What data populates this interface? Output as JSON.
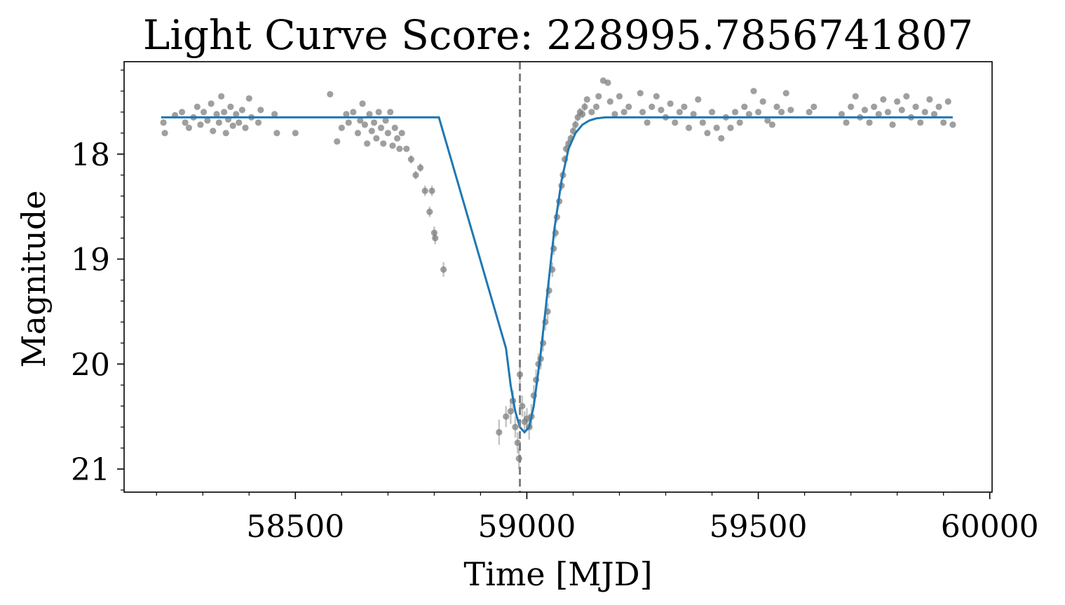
{
  "chart_data": {
    "type": "scatter",
    "title": "Light Curve Score: 228995.7856741807",
    "xlabel": "Time [MJD]",
    "ylabel": "Magnitude",
    "xlim": [
      58130,
      60005
    ],
    "ylim": [
      21.22,
      17.12
    ],
    "y_inverted": true,
    "x_ticks": [
      58500,
      59000,
      59500,
      60000
    ],
    "x_tick_labels": [
      "58500",
      "59000",
      "59500",
      "60000"
    ],
    "y_ticks": [
      18,
      19,
      20,
      21
    ],
    "y_tick_labels": [
      "18",
      "19",
      "20",
      "21"
    ],
    "x_minor_step": 100,
    "y_minor_step": 0.2,
    "grid": false,
    "legend": "none",
    "colors": {
      "points": "#7f7f7f",
      "model": "#1f77b4",
      "reference_line": "#7f7f7f"
    },
    "reference_line_x": 58985,
    "model": {
      "style": "solid",
      "x": [
        58210,
        58810,
        58955,
        58965,
        58975,
        58985,
        58995,
        59005,
        59015,
        59030,
        59045,
        59060,
        59075,
        59090,
        59105,
        59120,
        59135,
        59150,
        59170,
        59200,
        59300,
        59500,
        59700,
        59920
      ],
      "y": [
        17.65,
        17.65,
        19.85,
        20.2,
        20.45,
        20.6,
        20.65,
        20.6,
        20.4,
        19.9,
        19.3,
        18.7,
        18.25,
        17.95,
        17.8,
        17.72,
        17.68,
        17.66,
        17.65,
        17.65,
        17.65,
        17.65,
        17.65,
        17.65
      ]
    },
    "points": [
      [
        58215,
        17.7,
        0.03
      ],
      [
        58218,
        17.8,
        0.03
      ],
      [
        58240,
        17.63,
        0.03
      ],
      [
        58255,
        17.6,
        0.03
      ],
      [
        58262,
        17.7,
        0.03
      ],
      [
        58270,
        17.75,
        0.03
      ],
      [
        58280,
        17.65,
        0.03
      ],
      [
        58288,
        17.55,
        0.03
      ],
      [
        58295,
        17.72,
        0.03
      ],
      [
        58302,
        17.6,
        0.03
      ],
      [
        58310,
        17.68,
        0.03
      ],
      [
        58318,
        17.52,
        0.03
      ],
      [
        58322,
        17.78,
        0.03
      ],
      [
        58330,
        17.62,
        0.03
      ],
      [
        58335,
        17.7,
        0.03
      ],
      [
        58340,
        17.45,
        0.03
      ],
      [
        58346,
        17.6,
        0.03
      ],
      [
        58350,
        17.8,
        0.03
      ],
      [
        58355,
        17.67,
        0.03
      ],
      [
        58360,
        17.55,
        0.03
      ],
      [
        58365,
        17.73,
        0.03
      ],
      [
        58372,
        17.62,
        0.03
      ],
      [
        58378,
        17.7,
        0.03
      ],
      [
        58385,
        17.58,
        0.03
      ],
      [
        58392,
        17.75,
        0.03
      ],
      [
        58400,
        17.47,
        0.03
      ],
      [
        58405,
        17.65,
        0.03
      ],
      [
        58420,
        17.7,
        0.03
      ],
      [
        58425,
        17.58,
        0.03
      ],
      [
        58455,
        17.62,
        0.03
      ],
      [
        58460,
        17.8,
        0.03
      ],
      [
        58500,
        17.8,
        0.03
      ],
      [
        58575,
        17.43,
        0.03
      ],
      [
        58590,
        17.88,
        0.03
      ],
      [
        58600,
        17.75,
        0.03
      ],
      [
        58610,
        17.62,
        0.03
      ],
      [
        58615,
        17.7,
        0.03
      ],
      [
        58625,
        17.6,
        0.03
      ],
      [
        58635,
        17.8,
        0.03
      ],
      [
        58640,
        17.68,
        0.03
      ],
      [
        58645,
        17.52,
        0.03
      ],
      [
        58650,
        17.72,
        0.03
      ],
      [
        58655,
        17.9,
        0.03
      ],
      [
        58660,
        17.62,
        0.03
      ],
      [
        58665,
        17.78,
        0.03
      ],
      [
        58670,
        17.7,
        0.03
      ],
      [
        58675,
        17.85,
        0.03
      ],
      [
        58680,
        17.6,
        0.03
      ],
      [
        58685,
        17.75,
        0.03
      ],
      [
        58690,
        17.9,
        0.03
      ],
      [
        58695,
        17.68,
        0.03
      ],
      [
        58700,
        17.8,
        0.03
      ],
      [
        58705,
        17.6,
        0.03
      ],
      [
        58710,
        17.92,
        0.03
      ],
      [
        58715,
        17.75,
        0.03
      ],
      [
        58720,
        17.85,
        0.03
      ],
      [
        58725,
        17.95,
        0.03
      ],
      [
        58730,
        17.8,
        0.03
      ],
      [
        58740,
        17.95,
        0.03
      ],
      [
        58750,
        18.05,
        0.04
      ],
      [
        58760,
        18.2,
        0.04
      ],
      [
        58770,
        18.13,
        0.04
      ],
      [
        58780,
        18.35,
        0.05
      ],
      [
        58795,
        18.35,
        0.05
      ],
      [
        58790,
        18.55,
        0.05
      ],
      [
        58800,
        18.75,
        0.06
      ],
      [
        58802,
        18.8,
        0.06
      ],
      [
        58820,
        19.1,
        0.07
      ],
      [
        58940,
        20.65,
        0.12
      ],
      [
        58955,
        20.5,
        0.1
      ],
      [
        58965,
        20.45,
        0.12
      ],
      [
        58970,
        20.35,
        0.1
      ],
      [
        58975,
        20.6,
        0.1
      ],
      [
        58980,
        20.75,
        0.1
      ],
      [
        58983,
        20.9,
        0.1
      ],
      [
        58985,
        20.1,
        0.12
      ],
      [
        58990,
        20.4,
        0.1
      ],
      [
        58995,
        20.55,
        0.1
      ],
      [
        59000,
        20.52,
        0.1
      ],
      [
        59005,
        20.6,
        0.12
      ],
      [
        59010,
        20.5,
        0.12
      ],
      [
        59015,
        20.3,
        0.1
      ],
      [
        59020,
        20.15,
        0.1
      ],
      [
        59025,
        20.0,
        0.1
      ],
      [
        59030,
        19.95,
        0.1
      ],
      [
        59035,
        19.8,
        0.08
      ],
      [
        59040,
        19.6,
        0.08
      ],
      [
        59045,
        19.5,
        0.08
      ],
      [
        59048,
        19.3,
        0.07
      ],
      [
        59055,
        19.1,
        0.07
      ],
      [
        59058,
        18.9,
        0.06
      ],
      [
        59062,
        18.75,
        0.05
      ],
      [
        59065,
        18.6,
        0.05
      ],
      [
        59070,
        18.45,
        0.05
      ],
      [
        59075,
        18.3,
        0.05
      ],
      [
        59078,
        18.2,
        0.04
      ],
      [
        59082,
        18.05,
        0.04
      ],
      [
        59085,
        17.95,
        0.04
      ],
      [
        59090,
        17.9,
        0.04
      ],
      [
        59095,
        17.85,
        0.04
      ],
      [
        59100,
        17.78,
        0.04
      ],
      [
        59105,
        17.72,
        0.04
      ],
      [
        59110,
        17.65,
        0.04
      ],
      [
        59115,
        17.6,
        0.04
      ],
      [
        59120,
        17.62,
        0.04
      ],
      [
        59125,
        17.55,
        0.04
      ],
      [
        59130,
        17.48,
        0.03
      ],
      [
        59140,
        17.6,
        0.03
      ],
      [
        59150,
        17.55,
        0.03
      ],
      [
        59155,
        17.45,
        0.03
      ],
      [
        59165,
        17.3,
        0.03
      ],
      [
        59175,
        17.32,
        0.03
      ],
      [
        59180,
        17.5,
        0.03
      ],
      [
        59190,
        17.62,
        0.03
      ],
      [
        59200,
        17.45,
        0.03
      ],
      [
        59210,
        17.6,
        0.03
      ],
      [
        59220,
        17.55,
        0.03
      ],
      [
        59245,
        17.42,
        0.03
      ],
      [
        59250,
        17.6,
        0.03
      ],
      [
        59260,
        17.7,
        0.03
      ],
      [
        59270,
        17.55,
        0.03
      ],
      [
        59280,
        17.45,
        0.03
      ],
      [
        59290,
        17.58,
        0.03
      ],
      [
        59300,
        17.65,
        0.03
      ],
      [
        59310,
        17.52,
        0.03
      ],
      [
        59320,
        17.7,
        0.03
      ],
      [
        59330,
        17.6,
        0.03
      ],
      [
        59340,
        17.55,
        0.03
      ],
      [
        59350,
        17.75,
        0.03
      ],
      [
        59360,
        17.62,
        0.03
      ],
      [
        59370,
        17.48,
        0.03
      ],
      [
        59380,
        17.7,
        0.03
      ],
      [
        59390,
        17.8,
        0.03
      ],
      [
        59400,
        17.6,
        0.03
      ],
      [
        59410,
        17.75,
        0.03
      ],
      [
        59420,
        17.85,
        0.03
      ],
      [
        59430,
        17.65,
        0.03
      ],
      [
        59440,
        17.75,
        0.03
      ],
      [
        59450,
        17.6,
        0.03
      ],
      [
        59460,
        17.7,
        0.03
      ],
      [
        59470,
        17.55,
        0.03
      ],
      [
        59480,
        17.62,
        0.03
      ],
      [
        59490,
        17.4,
        0.03
      ],
      [
        59500,
        17.6,
        0.03
      ],
      [
        59510,
        17.5,
        0.03
      ],
      [
        59520,
        17.68,
        0.03
      ],
      [
        59530,
        17.72,
        0.03
      ],
      [
        59540,
        17.55,
        0.03
      ],
      [
        59550,
        17.6,
        0.03
      ],
      [
        59560,
        17.42,
        0.03
      ],
      [
        59570,
        17.58,
        0.03
      ],
      [
        59610,
        17.6,
        0.03
      ],
      [
        59620,
        17.55,
        0.03
      ],
      [
        59680,
        17.62,
        0.03
      ],
      [
        59690,
        17.7,
        0.03
      ],
      [
        59700,
        17.55,
        0.03
      ],
      [
        59710,
        17.45,
        0.03
      ],
      [
        59720,
        17.65,
        0.03
      ],
      [
        59730,
        17.58,
        0.03
      ],
      [
        59740,
        17.7,
        0.03
      ],
      [
        59750,
        17.55,
        0.03
      ],
      [
        59760,
        17.62,
        0.03
      ],
      [
        59770,
        17.48,
        0.03
      ],
      [
        59780,
        17.6,
        0.03
      ],
      [
        59790,
        17.72,
        0.03
      ],
      [
        59800,
        17.5,
        0.03
      ],
      [
        59810,
        17.58,
        0.03
      ],
      [
        59820,
        17.45,
        0.03
      ],
      [
        59830,
        17.65,
        0.03
      ],
      [
        59840,
        17.55,
        0.03
      ],
      [
        59850,
        17.7,
        0.03
      ],
      [
        59860,
        17.6,
        0.03
      ],
      [
        59870,
        17.48,
        0.03
      ],
      [
        59880,
        17.62,
        0.03
      ],
      [
        59890,
        17.55,
        0.03
      ],
      [
        59900,
        17.7,
        0.03
      ],
      [
        59910,
        17.5,
        0.03
      ],
      [
        59920,
        17.72,
        0.03
      ]
    ]
  }
}
